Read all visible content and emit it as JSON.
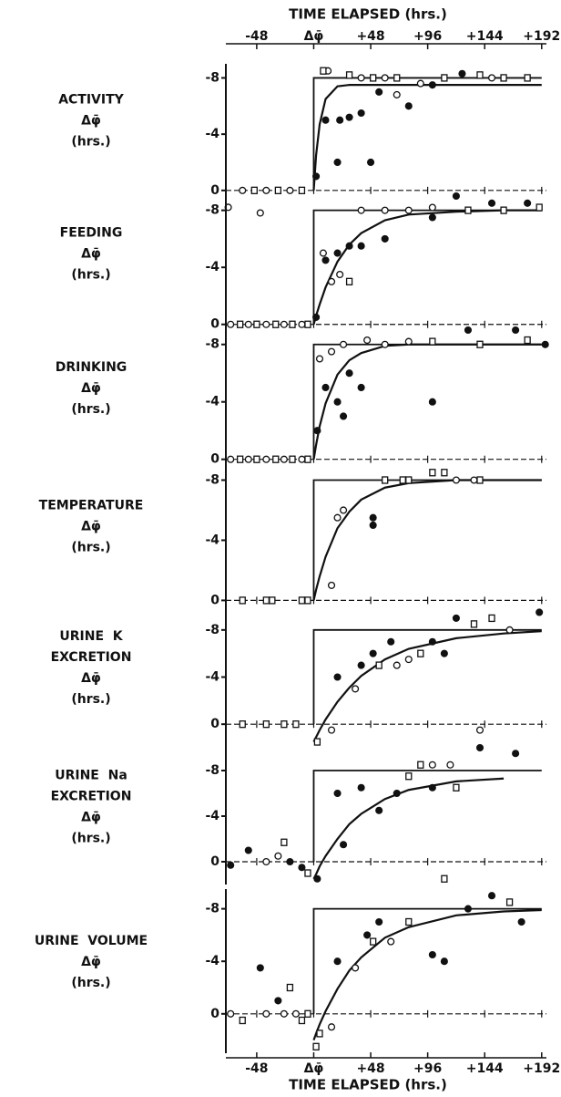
{
  "chart_data": [
    {
      "type": "scatter",
      "xlabel": "TIME ELAPSED (hrs.)",
      "xtick_position": "top",
      "ylabel": [
        "ACTIVITY",
        "Δφ̄",
        "(hrs.)"
      ],
      "xlim": [
        -74,
        196
      ],
      "xticks": [
        -48,
        {
          "value": 0,
          "label": "Δφ̄"
        },
        {
          "value": 48,
          "label": "+48"
        },
        {
          "value": 96,
          "label": "+96"
        },
        {
          "value": 144,
          "label": "+144"
        },
        {
          "value": 192,
          "label": "+192"
        }
      ],
      "ylim": [
        0.4,
        -9
      ],
      "yticks": [
        0,
        -4,
        -8
      ],
      "series": [
        {
          "marker": "step",
          "color": "#111",
          "x": [
            0,
            0,
            192
          ],
          "values": [
            0,
            -8,
            -8
          ]
        },
        {
          "marker": "fit",
          "color": "#111",
          "x": [
            0,
            2,
            5,
            10,
            20,
            30,
            40,
            60,
            80,
            120,
            160,
            192
          ],
          "values": [
            0,
            -2.5,
            -4.7,
            -6.5,
            -7.4,
            -7.5,
            -7.5,
            -7.5,
            -7.5,
            -7.5,
            -7.5,
            -7.5
          ]
        },
        {
          "marker": "circle",
          "color": "#111",
          "x": [
            -72,
            -45,
            -60,
            -40,
            -20,
            12,
            40,
            60,
            70,
            90,
            150
          ],
          "values": [
            1.2,
            1.6,
            0,
            0,
            0,
            -8.5,
            -8,
            -8,
            -6.8,
            -7.6,
            -8
          ]
        },
        {
          "marker": "square",
          "color": "#111",
          "x": [
            -50,
            -30,
            -10,
            8,
            30,
            50,
            70,
            110,
            140,
            160,
            180
          ],
          "values": [
            0,
            0,
            0,
            -8.5,
            -8.2,
            -8,
            -8,
            -8,
            -8.2,
            -8,
            -8
          ]
        },
        {
          "marker": "dot",
          "color": "#111",
          "x": [
            2,
            10,
            20,
            22,
            30,
            40,
            48,
            55,
            80,
            100,
            125
          ],
          "values": [
            -1,
            -5,
            -2,
            -5,
            -5.2,
            -5.5,
            -2,
            -7,
            -6,
            -7.5,
            -8.3
          ]
        }
      ]
    },
    {
      "type": "scatter",
      "ylabel": [
        "FEEDING",
        "Δφ̄",
        "(hrs.)"
      ],
      "xlim": [
        -74,
        196
      ],
      "xticks": [
        -48,
        {
          "value": 0,
          "label": "Δφ̄"
        },
        {
          "value": 48,
          "label": "+48"
        },
        {
          "value": 96,
          "label": "+96"
        },
        {
          "value": 144,
          "label": "+144"
        },
        {
          "value": 192,
          "label": "+192"
        }
      ],
      "ylim": [
        0.4,
        -9
      ],
      "yticks": [
        0,
        -4,
        -8
      ],
      "series": [
        {
          "marker": "step",
          "color": "#111",
          "x": [
            0,
            0,
            192
          ],
          "values": [
            0,
            -8,
            -8
          ]
        },
        {
          "marker": "fit",
          "color": "#111",
          "x": [
            0,
            2,
            5,
            10,
            20,
            30,
            40,
            60,
            80,
            120,
            160,
            192
          ],
          "values": [
            0,
            -0.6,
            -1.4,
            -2.6,
            -4.4,
            -5.6,
            -6.4,
            -7.3,
            -7.7,
            -7.9,
            -8,
            -8
          ]
        },
        {
          "marker": "circle",
          "color": "#111",
          "x": [
            -70,
            -55,
            -40,
            -25,
            -10,
            8,
            15,
            22,
            40,
            60,
            80,
            100
          ],
          "values": [
            0,
            0,
            0,
            0,
            0,
            -5,
            -3,
            -3.5,
            -8,
            -8,
            -8,
            -8.2
          ]
        },
        {
          "marker": "square",
          "color": "#111",
          "x": [
            -62,
            -48,
            -32,
            -18,
            -5,
            30,
            130,
            160,
            190
          ],
          "values": [
            0,
            0,
            0,
            0,
            0,
            -3,
            -8,
            -8,
            -8.2
          ]
        },
        {
          "marker": "dot",
          "color": "#111",
          "x": [
            2,
            10,
            20,
            30,
            40,
            60,
            100,
            120,
            150,
            180
          ],
          "values": [
            -0.5,
            -4.5,
            -5,
            -5.5,
            -5.5,
            -6,
            -7.5,
            -9,
            -8.5,
            -8.5
          ]
        }
      ]
    },
    {
      "type": "scatter",
      "ylabel": [
        "DRINKING",
        "Δφ̄",
        "(hrs.)"
      ],
      "xlim": [
        -74,
        196
      ],
      "xticks": [
        -48,
        {
          "value": 0,
          "label": "Δφ̄"
        },
        {
          "value": 48,
          "label": "+48"
        },
        {
          "value": 96,
          "label": "+96"
        },
        {
          "value": 144,
          "label": "+144"
        },
        {
          "value": 192,
          "label": "+192"
        }
      ],
      "ylim": [
        0.4,
        -9
      ],
      "yticks": [
        0,
        -4,
        -8
      ],
      "series": [
        {
          "marker": "step",
          "color": "#111",
          "x": [
            0,
            0,
            192
          ],
          "values": [
            0,
            -8,
            -8
          ]
        },
        {
          "marker": "fit",
          "color": "#111",
          "x": [
            0,
            2,
            5,
            10,
            20,
            30,
            40,
            60,
            80,
            120,
            160,
            192
          ],
          "values": [
            0,
            -1,
            -2.3,
            -3.9,
            -5.9,
            -6.9,
            -7.4,
            -7.9,
            -8,
            -8,
            -8,
            -8
          ]
        },
        {
          "marker": "circle",
          "color": "#111",
          "x": [
            -70,
            -55,
            -40,
            -25,
            -10,
            5,
            15,
            25,
            45,
            60,
            80
          ],
          "values": [
            0,
            0,
            0,
            0,
            0,
            -7,
            -7.5,
            -8,
            -8.3,
            -8,
            -8.2
          ]
        },
        {
          "marker": "square",
          "color": "#111",
          "x": [
            -62,
            -48,
            -32,
            -18,
            -5,
            100,
            140,
            180
          ],
          "values": [
            0,
            0,
            0,
            0,
            0,
            -8.2,
            -8,
            -8.3
          ]
        },
        {
          "marker": "dot",
          "color": "#111",
          "x": [
            3,
            10,
            20,
            25,
            30,
            40,
            100,
            130,
            170,
            195
          ],
          "values": [
            -2,
            -5,
            -4,
            -3,
            -6,
            -5,
            -4,
            -9,
            -9,
            -8
          ]
        }
      ]
    },
    {
      "type": "scatter",
      "ylabel": [
        "TEMPERATURE",
        "Δφ̄",
        "(hrs.)"
      ],
      "xlim": [
        -74,
        196
      ],
      "xticks": [
        -48,
        {
          "value": 0,
          "label": "Δφ̄"
        },
        {
          "value": 48,
          "label": "+48"
        },
        {
          "value": 96,
          "label": "+96"
        },
        {
          "value": 144,
          "label": "+144"
        },
        {
          "value": 192,
          "label": "+192"
        }
      ],
      "ylim": [
        0.4,
        -9
      ],
      "yticks": [
        0,
        -4,
        -8
      ],
      "series": [
        {
          "marker": "step",
          "color": "#111",
          "x": [
            0,
            0,
            192
          ],
          "values": [
            0,
            -8,
            -8
          ]
        },
        {
          "marker": "fit",
          "color": "#111",
          "x": [
            0,
            2,
            5,
            10,
            20,
            30,
            40,
            60,
            80,
            120,
            160,
            192
          ],
          "values": [
            0,
            -0.7,
            -1.6,
            -2.9,
            -4.8,
            -5.9,
            -6.7,
            -7.5,
            -7.8,
            -8,
            -8,
            -8
          ]
        },
        {
          "marker": "circle",
          "color": "#111",
          "x": [
            15,
            20,
            25,
            120,
            135
          ],
          "values": [
            -1,
            -5.5,
            -6,
            -8,
            -8
          ]
        },
        {
          "marker": "square",
          "color": "#111",
          "x": [
            -60,
            -40,
            -35,
            -10,
            -5,
            60,
            75,
            80,
            100,
            110,
            140
          ],
          "values": [
            0,
            0,
            0,
            0,
            0,
            -8,
            -8,
            -8,
            -8.5,
            -8.5,
            -8
          ]
        },
        {
          "marker": "dot",
          "color": "#111",
          "x": [
            50,
            50
          ],
          "values": [
            -5,
            -5.5
          ]
        }
      ]
    },
    {
      "type": "scatter",
      "ylabel": [
        "URINE  K",
        "EXCRETION",
        "Δφ̄",
        "(hrs.)"
      ],
      "xlim": [
        -74,
        196
      ],
      "xticks": [
        -48,
        {
          "value": 0,
          "label": "Δφ̄"
        },
        {
          "value": 48,
          "label": "+48"
        },
        {
          "value": 96,
          "label": "+96"
        },
        {
          "value": 144,
          "label": "+144"
        },
        {
          "value": 192,
          "label": "+192"
        }
      ],
      "ylim": [
        2,
        -10
      ],
      "yticks": [
        0,
        -4,
        -8
      ],
      "series": [
        {
          "marker": "step",
          "color": "#111",
          "x": [
            0,
            0,
            192
          ],
          "values": [
            0,
            -8,
            -8
          ]
        },
        {
          "marker": "fit",
          "color": "#111",
          "x": [
            0,
            2,
            5,
            10,
            20,
            30,
            40,
            60,
            80,
            120,
            160,
            192
          ],
          "values": [
            1.5,
            1.1,
            0.5,
            -0.4,
            -1.9,
            -3.1,
            -4.1,
            -5.5,
            -6.4,
            -7.3,
            -7.7,
            -7.9
          ]
        },
        {
          "marker": "circle",
          "color": "#111",
          "x": [
            15,
            35,
            70,
            80,
            140,
            165
          ],
          "values": [
            0.5,
            -3,
            -5,
            -5.5,
            0.5,
            -8
          ]
        },
        {
          "marker": "square",
          "color": "#111",
          "x": [
            -60,
            -40,
            -25,
            -15,
            3,
            55,
            90,
            135,
            150
          ],
          "values": [
            0,
            0,
            0,
            0,
            1.5,
            -5,
            -6,
            -8.5,
            -9
          ]
        },
        {
          "marker": "dot",
          "color": "#111",
          "x": [
            20,
            40,
            50,
            65,
            100,
            110,
            120,
            190
          ],
          "values": [
            -4,
            -5,
            -6,
            -7,
            -7,
            -6,
            -9,
            -9.5
          ]
        }
      ]
    },
    {
      "type": "scatter",
      "ylabel": [
        "URINE  Na",
        "EXCRETION",
        "Δφ̄",
        "(hrs.)"
      ],
      "xlim": [
        -74,
        196
      ],
      "xticks": [
        -48,
        {
          "value": 0,
          "label": "Δφ̄"
        },
        {
          "value": 48,
          "label": "+48"
        },
        {
          "value": 96,
          "label": "+96"
        },
        {
          "value": 144,
          "label": "+144"
        },
        {
          "value": 192,
          "label": "+192"
        }
      ],
      "ylim": [
        2,
        -10
      ],
      "yticks": [
        0,
        -4,
        -8
      ],
      "series": [
        {
          "marker": "step",
          "color": "#111",
          "x": [
            0,
            0,
            192
          ],
          "values": [
            0,
            -8,
            -8
          ]
        },
        {
          "marker": "fit",
          "color": "#111",
          "x": [
            0,
            2,
            5,
            10,
            20,
            30,
            40,
            60,
            80,
            120,
            160
          ],
          "values": [
            1.5,
            1.1,
            0.4,
            -0.5,
            -2,
            -3.3,
            -4.2,
            -5.5,
            -6.3,
            -7.05,
            -7.3
          ]
        },
        {
          "marker": "circle",
          "color": "#111",
          "x": [
            -40,
            -30,
            100,
            115
          ],
          "values": [
            0,
            -0.5,
            -8.5,
            -8.5
          ]
        },
        {
          "marker": "square",
          "color": "#111",
          "x": [
            -25,
            -5,
            80,
            90,
            110,
            120
          ],
          "values": [
            -1.7,
            1,
            -7.5,
            -8.5,
            1.5,
            -6.5
          ]
        },
        {
          "marker": "dot",
          "color": "#111",
          "x": [
            -70,
            -55,
            -20,
            -10,
            3,
            20,
            25,
            40,
            55,
            70,
            100,
            140,
            170
          ],
          "values": [
            0.3,
            -1,
            0,
            0.5,
            1.5,
            -6,
            -1.5,
            -6.5,
            -4.5,
            -6,
            -6.5,
            -10,
            -9.5
          ]
        }
      ]
    },
    {
      "type": "scatter",
      "xlabel": "TIME ELAPSED (hrs.)",
      "xtick_position": "bottom",
      "ylabel": [
        "URINE  VOLUME",
        "Δφ̄",
        "(hrs.)"
      ],
      "xlim": [
        -74,
        196
      ],
      "xticks": [
        -48,
        {
          "value": 0,
          "label": "Δφ̄"
        },
        {
          "value": 48,
          "label": "+48"
        },
        {
          "value": 96,
          "label": "+96"
        },
        {
          "value": 144,
          "label": "+144"
        },
        {
          "value": 192,
          "label": "+192"
        }
      ],
      "ylim": [
        3,
        -9.5
      ],
      "yticks": [
        0,
        -4,
        -8
      ],
      "series": [
        {
          "marker": "step",
          "color": "#111",
          "x": [
            0,
            0,
            192
          ],
          "values": [
            0,
            -8,
            -8
          ]
        },
        {
          "marker": "fit",
          "color": "#111",
          "x": [
            0,
            2,
            5,
            10,
            20,
            30,
            40,
            60,
            80,
            120,
            160,
            192
          ],
          "values": [
            2,
            1.5,
            0.8,
            -0.2,
            -1.9,
            -3.3,
            -4.3,
            -5.8,
            -6.6,
            -7.5,
            -7.8,
            -7.9
          ]
        },
        {
          "marker": "circle",
          "color": "#111",
          "x": [
            -70,
            -40,
            -25,
            -15,
            15,
            35,
            65
          ],
          "values": [
            0,
            0,
            0,
            0,
            1,
            -3.5,
            -5.5
          ]
        },
        {
          "marker": "square",
          "color": "#111",
          "x": [
            -60,
            -20,
            -10,
            -5,
            2,
            5,
            50,
            80,
            165
          ],
          "values": [
            0.5,
            -2,
            0.5,
            0,
            2.5,
            1.5,
            -5.5,
            -7,
            -8.5
          ]
        },
        {
          "marker": "dot",
          "color": "#111",
          "x": [
            -45,
            -30,
            20,
            45,
            55,
            100,
            110,
            130,
            150,
            175
          ],
          "values": [
            -3.5,
            -1,
            -4,
            -6,
            -7,
            -4.5,
            -4,
            -8,
            -9,
            -7
          ]
        }
      ]
    }
  ]
}
